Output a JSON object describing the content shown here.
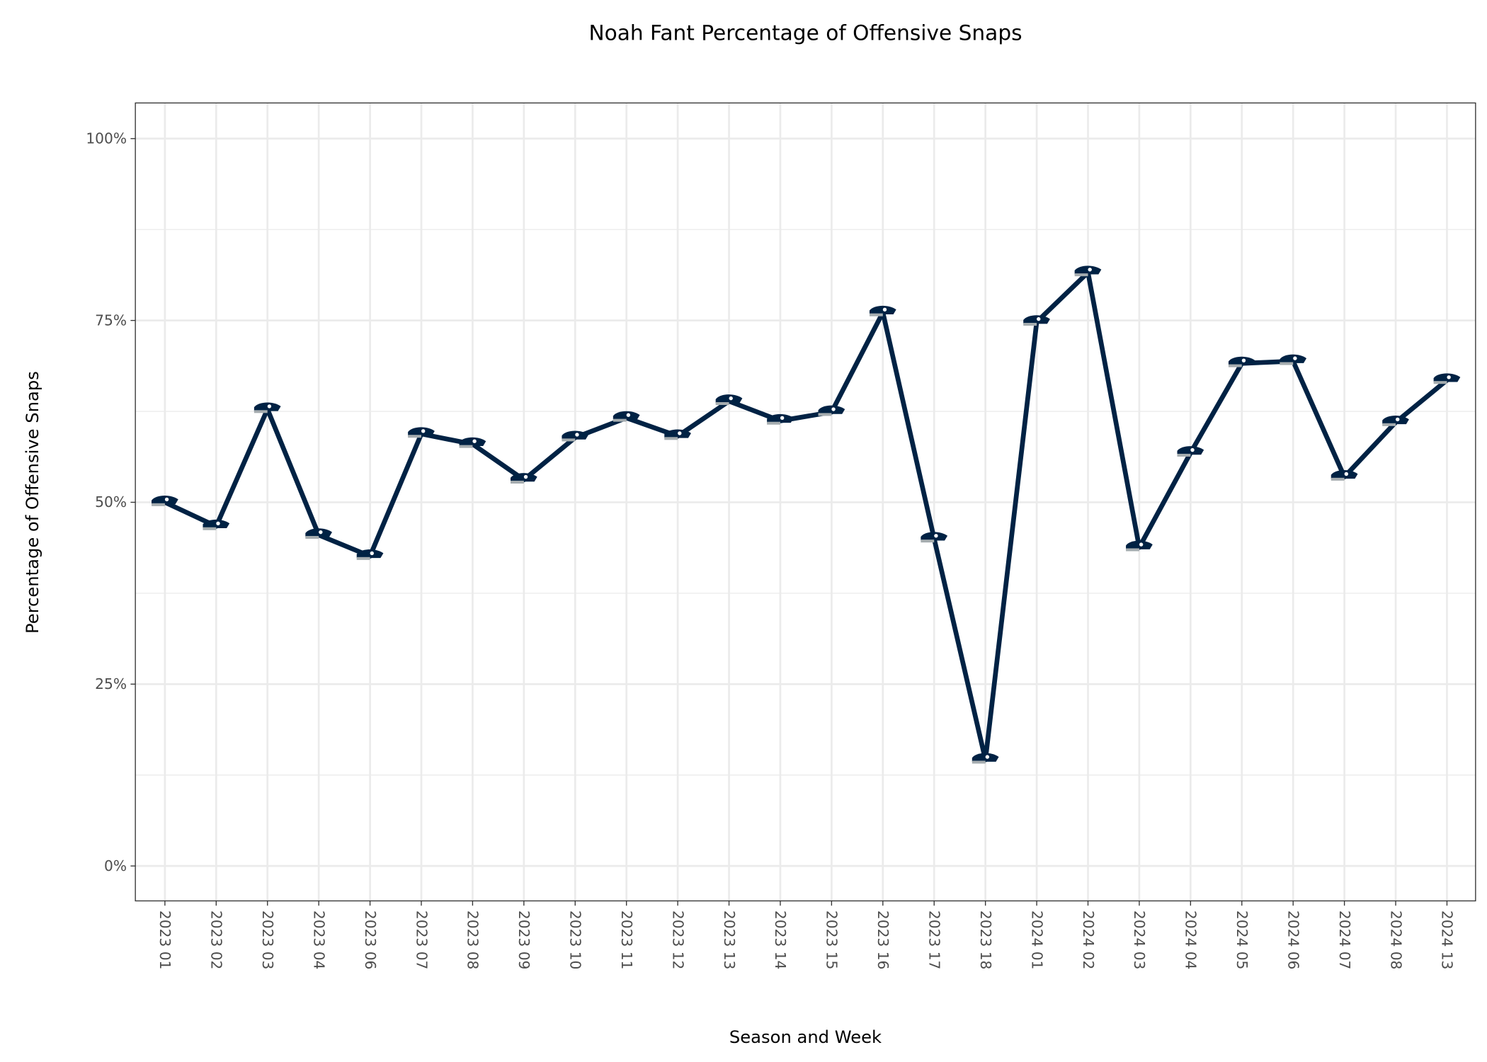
{
  "chart_data": {
    "type": "line",
    "title": "Noah Fant Percentage of Offensive Snaps",
    "xlabel": "Season and Week",
    "ylabel": "Percentage of Offensive Snaps",
    "categories": [
      "2023 01",
      "2023 02",
      "2023 03",
      "2023 04",
      "2023 06",
      "2023 07",
      "2023 08",
      "2023 09",
      "2023 10",
      "2023 11",
      "2023 12",
      "2023 13",
      "2023 14",
      "2023 15",
      "2023 16",
      "2023 17",
      "2023 18",
      "2024 01",
      "2024 02",
      "2024 03",
      "2024 04",
      "2024 05",
      "2024 06",
      "2024 07",
      "2024 08",
      "2024 13"
    ],
    "values": [
      50.0,
      46.7,
      62.8,
      45.5,
      42.6,
      59.4,
      58.0,
      53.1,
      58.9,
      61.6,
      59.1,
      63.9,
      61.2,
      62.4,
      76.1,
      45.0,
      14.6,
      74.8,
      81.6,
      43.8,
      56.8,
      69.1,
      69.4,
      53.5,
      61.0,
      66.8
    ],
    "ylim": [
      -4.8,
      104.9
    ],
    "yticks": [
      0,
      25,
      50,
      75,
      100
    ],
    "ytick_labels": [
      "0%",
      "25%",
      "50%",
      "75%",
      "100%"
    ],
    "grid": true,
    "legend": "none",
    "marker": "seahawks-helmet-logo",
    "colors": {
      "line": "#002244",
      "marker_primary": "#002244",
      "marker_secondary": "#A5ACAF",
      "grid": "#EBEBEB",
      "panel_border": "#333333"
    }
  }
}
